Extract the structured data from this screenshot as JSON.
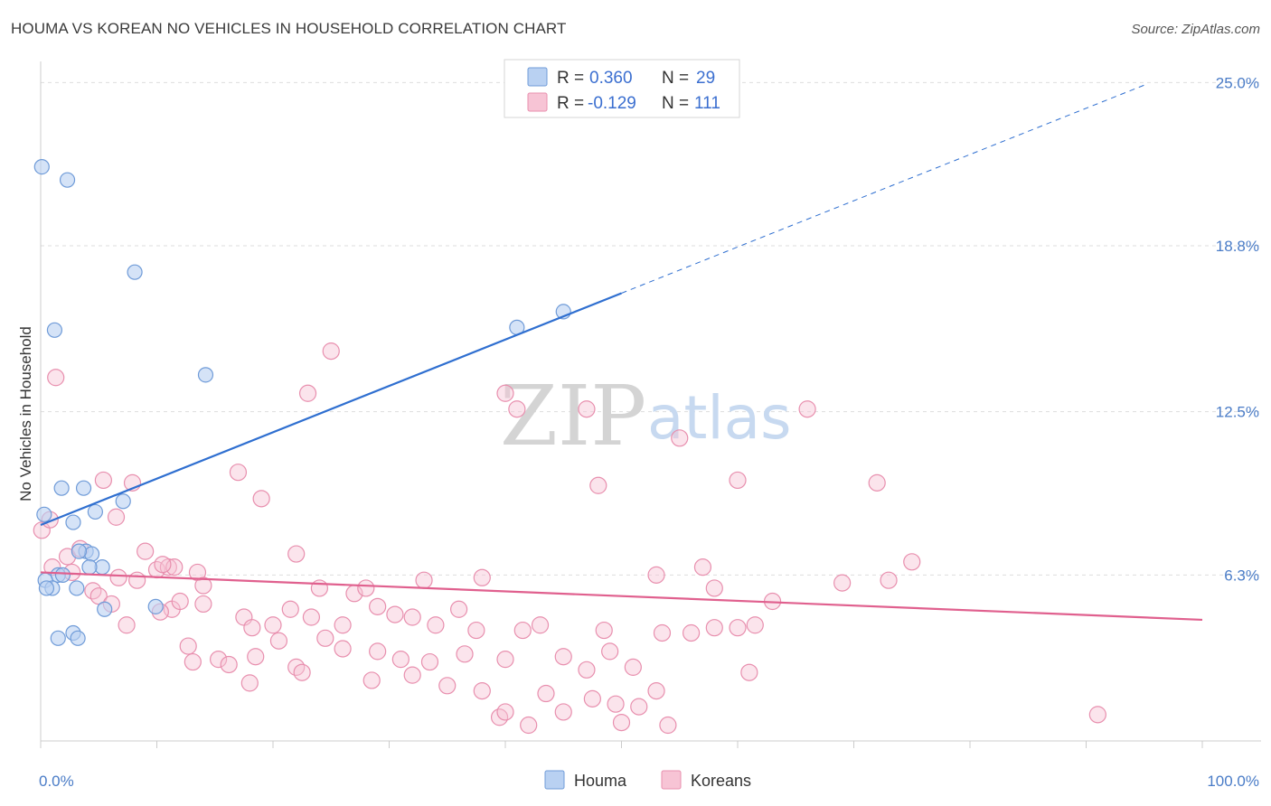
{
  "title": "HOUMA VS KOREAN NO VEHICLES IN HOUSEHOLD CORRELATION CHART",
  "source": "Source: ZipAtlas.com",
  "watermark": {
    "zip": "ZIP",
    "atlas": "atlas"
  },
  "legend": {
    "rows": [
      {
        "r_label": "R =",
        "r_value": "0.360",
        "n_label": "N =",
        "n_value": "29"
      },
      {
        "r_label": "R =",
        "r_value": "-0.129",
        "n_label": "N =",
        "n_value": "111"
      }
    ]
  },
  "bottom_legend": [
    "Houma",
    "Koreans"
  ],
  "colors": {
    "houma_fill": "#b9d1f2",
    "houma_stroke": "#6f9bd8",
    "houma_line": "#2f6fd0",
    "korean_fill": "#f7c4d5",
    "korean_stroke": "#e88fae",
    "korean_line": "#e0608e",
    "grid": "#dddddd",
    "tick_text": "#4a7cc7"
  },
  "chart_data": {
    "type": "scatter",
    "title": "HOUMA VS KOREAN NO VEHICLES IN HOUSEHOLD CORRELATION CHART",
    "xlabel": "",
    "ylabel": "No Vehicles in Household",
    "xlim": [
      0,
      100
    ],
    "ylim": [
      0,
      25.8
    ],
    "x_tick_labels": [
      "0.0%",
      "100.0%"
    ],
    "y_ticks": [
      6.3,
      12.5,
      18.8,
      25.0
    ],
    "y_tick_labels": [
      "6.3%",
      "12.5%",
      "18.8%",
      "25.0%"
    ],
    "series": [
      {
        "name": "Houma",
        "r": 0.36,
        "n": 29,
        "points": [
          [
            0.1,
            21.8
          ],
          [
            2.3,
            21.3
          ],
          [
            8.1,
            17.8
          ],
          [
            1.2,
            15.6
          ],
          [
            14.2,
            13.9
          ],
          [
            41.0,
            15.7
          ],
          [
            45.0,
            16.3
          ],
          [
            1.8,
            9.6
          ],
          [
            3.7,
            9.6
          ],
          [
            7.1,
            9.1
          ],
          [
            4.7,
            8.7
          ],
          [
            2.8,
            8.3
          ],
          [
            0.3,
            8.6
          ],
          [
            3.9,
            7.2
          ],
          [
            4.4,
            7.1
          ],
          [
            3.3,
            7.2
          ],
          [
            5.3,
            6.6
          ],
          [
            4.2,
            6.6
          ],
          [
            1.5,
            6.3
          ],
          [
            1.9,
            6.3
          ],
          [
            0.4,
            6.1
          ],
          [
            1.0,
            5.8
          ],
          [
            3.1,
            5.8
          ],
          [
            0.5,
            5.8
          ],
          [
            5.5,
            5.0
          ],
          [
            9.9,
            5.1
          ],
          [
            1.5,
            3.9
          ],
          [
            2.8,
            4.1
          ],
          [
            3.2,
            3.9
          ]
        ],
        "trend": {
          "x0": 0,
          "y0": 8.2,
          "x1": 50,
          "y1": 17.0,
          "dash_to_x": 95,
          "dash_to_y": 24.9
        }
      },
      {
        "name": "Koreans",
        "r": -0.129,
        "n": 111,
        "points": [
          [
            0.1,
            8.0
          ],
          [
            1.3,
            13.8
          ],
          [
            5.4,
            9.9
          ],
          [
            7.9,
            9.8
          ],
          [
            6.5,
            8.5
          ],
          [
            17.0,
            10.2
          ],
          [
            19.0,
            9.2
          ],
          [
            23.0,
            13.2
          ],
          [
            25.0,
            14.8
          ],
          [
            40.0,
            13.2
          ],
          [
            41.0,
            12.6
          ],
          [
            47.0,
            12.6
          ],
          [
            48.0,
            9.7
          ],
          [
            55.0,
            11.5
          ],
          [
            60.0,
            9.9
          ],
          [
            66.0,
            12.6
          ],
          [
            72.0,
            9.8
          ],
          [
            2.3,
            7.0
          ],
          [
            3.4,
            7.3
          ],
          [
            6.7,
            6.2
          ],
          [
            8.3,
            6.1
          ],
          [
            10.0,
            6.5
          ],
          [
            11.0,
            6.6
          ],
          [
            11.5,
            6.6
          ],
          [
            13.5,
            6.4
          ],
          [
            22.0,
            7.1
          ],
          [
            24.0,
            5.8
          ],
          [
            27.0,
            5.6
          ],
          [
            28.0,
            5.8
          ],
          [
            33.0,
            6.1
          ],
          [
            36.0,
            5.0
          ],
          [
            38.0,
            6.2
          ],
          [
            53.0,
            6.3
          ],
          [
            57.0,
            6.6
          ],
          [
            58.0,
            5.8
          ],
          [
            63.0,
            5.3
          ],
          [
            73.0,
            6.1
          ],
          [
            75.0,
            6.8
          ],
          [
            2.7,
            6.4
          ],
          [
            4.5,
            5.7
          ],
          [
            5.0,
            5.5
          ],
          [
            6.1,
            5.2
          ],
          [
            11.3,
            5.0
          ],
          [
            12.0,
            5.3
          ],
          [
            14.0,
            5.2
          ],
          [
            17.5,
            4.7
          ],
          [
            18.2,
            4.3
          ],
          [
            20.0,
            4.4
          ],
          [
            21.5,
            5.0
          ],
          [
            23.3,
            4.7
          ],
          [
            26.0,
            4.4
          ],
          [
            29.0,
            5.1
          ],
          [
            30.5,
            4.8
          ],
          [
            32.0,
            4.7
          ],
          [
            34.0,
            4.4
          ],
          [
            37.5,
            4.2
          ],
          [
            41.5,
            4.2
          ],
          [
            43.0,
            4.4
          ],
          [
            48.5,
            4.2
          ],
          [
            53.5,
            4.1
          ],
          [
            58.0,
            4.3
          ],
          [
            60.0,
            4.3
          ],
          [
            61.5,
            4.4
          ],
          [
            7.4,
            4.4
          ],
          [
            10.3,
            4.9
          ],
          [
            12.7,
            3.6
          ],
          [
            13.1,
            3.0
          ],
          [
            15.3,
            3.1
          ],
          [
            16.2,
            2.9
          ],
          [
            18.5,
            3.2
          ],
          [
            20.5,
            3.8
          ],
          [
            22.0,
            2.8
          ],
          [
            24.5,
            3.9
          ],
          [
            26.0,
            3.5
          ],
          [
            29.0,
            3.4
          ],
          [
            31.0,
            3.1
          ],
          [
            33.5,
            3.0
          ],
          [
            36.5,
            3.3
          ],
          [
            40.0,
            3.1
          ],
          [
            45.0,
            3.2
          ],
          [
            47.0,
            2.7
          ],
          [
            49.0,
            3.4
          ],
          [
            51.0,
            2.8
          ],
          [
            56.0,
            4.1
          ],
          [
            18.0,
            2.2
          ],
          [
            22.5,
            2.6
          ],
          [
            28.5,
            2.3
          ],
          [
            32.0,
            2.5
          ],
          [
            35.0,
            2.1
          ],
          [
            38.0,
            1.9
          ],
          [
            43.5,
            1.8
          ],
          [
            45.0,
            1.1
          ],
          [
            47.5,
            1.6
          ],
          [
            49.5,
            1.4
          ],
          [
            51.5,
            1.3
          ],
          [
            53.0,
            1.9
          ],
          [
            39.5,
            0.9
          ],
          [
            40.0,
            1.1
          ],
          [
            42.0,
            0.6
          ],
          [
            50.0,
            0.7
          ],
          [
            54.0,
            0.6
          ],
          [
            61.0,
            2.6
          ],
          [
            91.0,
            1.0
          ],
          [
            69.0,
            6.0
          ],
          [
            14.0,
            5.9
          ],
          [
            9.0,
            7.2
          ],
          [
            10.5,
            6.7
          ],
          [
            1.0,
            6.6
          ],
          [
            0.8,
            8.4
          ]
        ],
        "trend": {
          "x0": 0,
          "y0": 6.4,
          "x1": 100,
          "y1": 4.6
        }
      }
    ]
  }
}
